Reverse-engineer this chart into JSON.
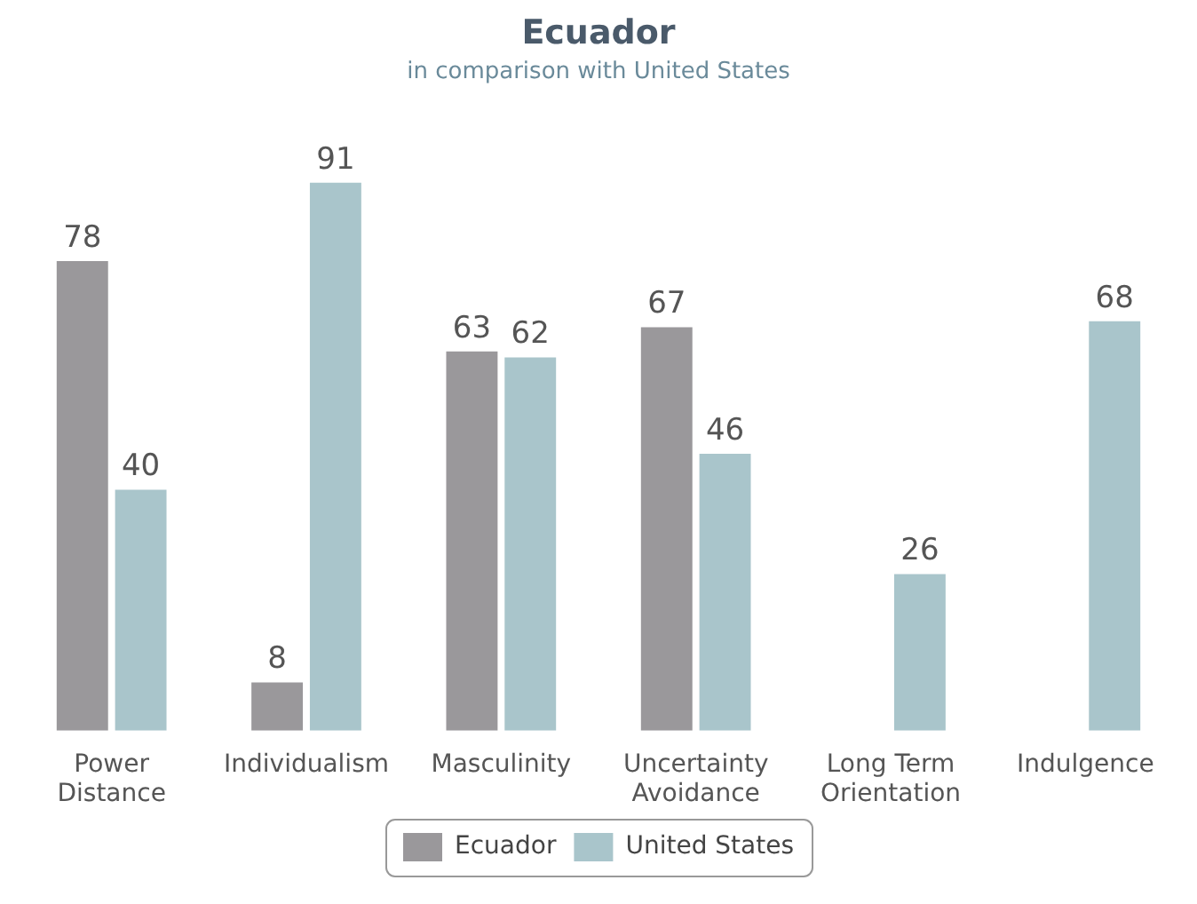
{
  "chart_data": {
    "type": "bar",
    "title": "Ecuador",
    "subtitle": "in comparison with United States",
    "categories": [
      "Power Distance",
      "Individualism",
      "Masculinity",
      "Uncertainty Avoidance",
      "Long Term Orientation",
      "Indulgence"
    ],
    "series": [
      {
        "name": "Ecuador",
        "color": "#9a989b",
        "values": [
          78,
          8,
          63,
          67,
          null,
          null
        ]
      },
      {
        "name": "United States",
        "color": "#a9c5cb",
        "values": [
          40,
          91,
          62,
          46,
          26,
          68
        ]
      }
    ],
    "data_labels": true,
    "legend": "bottom",
    "grid": false,
    "tick_labels": "x"
  }
}
